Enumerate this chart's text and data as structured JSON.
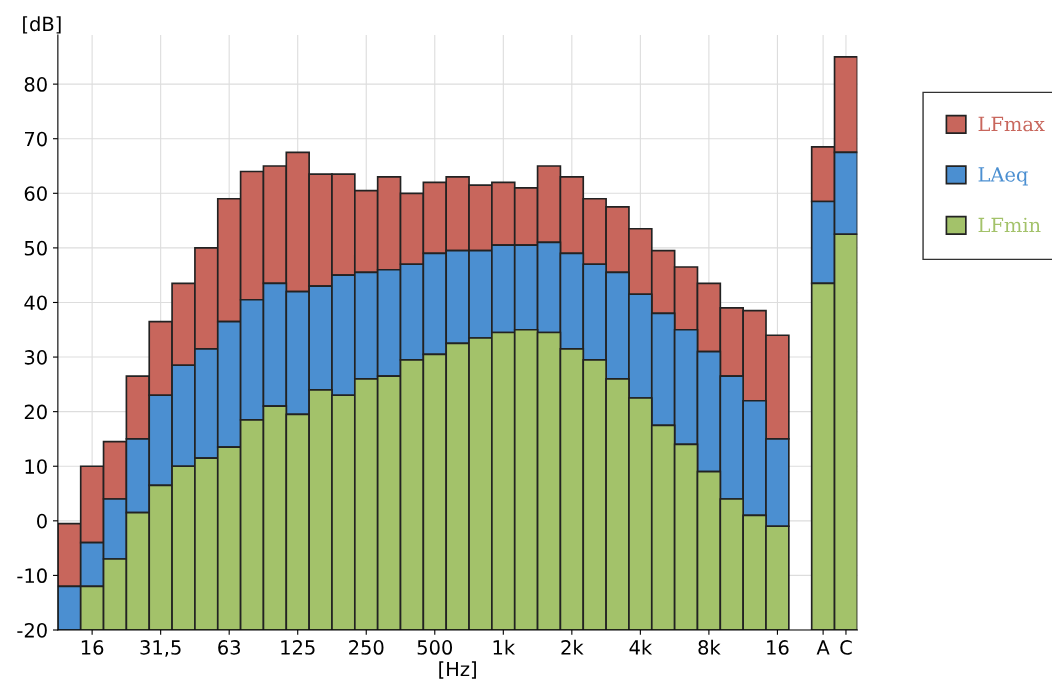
{
  "chart_data": {
    "type": "bar",
    "xlabel": "[Hz]",
    "ylabel": "[dB]",
    "categories": [
      null,
      "16",
      null,
      null,
      "31,5",
      null,
      null,
      "63",
      null,
      null,
      "125",
      null,
      null,
      "250",
      null,
      null,
      "500",
      null,
      null,
      "1k",
      null,
      null,
      "2k",
      null,
      null,
      "4k",
      null,
      null,
      "8k",
      null,
      null,
      "16",
      null,
      "A",
      "C"
    ],
    "series": [
      {
        "name": "LFmax",
        "color": "#c8665c",
        "base": [
          -12,
          -4,
          4,
          15,
          23,
          28.5,
          31.5,
          36.5,
          40.5,
          43.5,
          42,
          43,
          45,
          45.5,
          46,
          47,
          49,
          49.5,
          49.5,
          50.5,
          50.5,
          51,
          49,
          47,
          45.5,
          41.5,
          38,
          35,
          31,
          26.5,
          22,
          15,
          null,
          58.5,
          67.5
        ],
        "values": [
          11.5,
          14,
          10.5,
          11.5,
          13.5,
          15,
          18.5,
          22.5,
          23.5,
          21.5,
          25.5,
          20.5,
          18.5,
          15,
          17,
          13,
          13,
          13.5,
          12,
          11.5,
          10.5,
          14,
          14,
          12,
          12,
          12,
          11.5,
          11.5,
          12.5,
          12.5,
          16.5,
          19,
          null,
          10,
          17.5
        ]
      },
      {
        "name": "LAeq",
        "color": "#4b8fd1",
        "base": [
          -20,
          -12,
          -7,
          1.5,
          6.5,
          10,
          11.5,
          13.5,
          18.5,
          21,
          19.5,
          24,
          23,
          26,
          26.5,
          29.5,
          30.5,
          32.5,
          33.5,
          34.5,
          35,
          34.5,
          31.5,
          29.5,
          26,
          22.5,
          17.5,
          14,
          9,
          4,
          1,
          -1,
          null,
          43.5,
          52.5
        ],
        "values": [
          8,
          8,
          11,
          13.5,
          16.5,
          18.5,
          20,
          23,
          22,
          22.5,
          22.5,
          19,
          22,
          19.5,
          19.5,
          17.5,
          18.5,
          17,
          16,
          16,
          15.5,
          16.5,
          17.5,
          17.5,
          19.5,
          19,
          20.5,
          21,
          22,
          22.5,
          21,
          16,
          null,
          15,
          15
        ]
      },
      {
        "name": "LFmin",
        "color": "#a3c26a",
        "base": [
          null,
          -20,
          -20,
          -20,
          -20,
          -20,
          -20,
          -20,
          -20,
          -20,
          -20,
          -20,
          -20,
          -20,
          -20,
          -20,
          -20,
          -20,
          -20,
          -20,
          -20,
          -20,
          -20,
          -20,
          -20,
          -20,
          -20,
          -20,
          -20,
          -20,
          -20,
          -20,
          null,
          -20,
          -20
        ],
        "values": [
          null,
          8,
          13,
          21.5,
          26.5,
          30,
          31.5,
          33.5,
          38.5,
          41,
          39.5,
          44,
          43,
          46,
          46.5,
          49.5,
          50.5,
          52.5,
          53.5,
          54.5,
          55,
          54.5,
          51.5,
          49.5,
          46,
          42.5,
          37.5,
          34,
          29,
          24,
          21,
          19,
          null,
          63.5,
          72.5
        ]
      }
    ],
    "ylim": [
      -20,
      89
    ],
    "yticks": [
      -20,
      -10,
      0,
      10,
      20,
      30,
      40,
      50,
      60,
      70,
      80
    ],
    "grid": true,
    "legend": "right"
  }
}
